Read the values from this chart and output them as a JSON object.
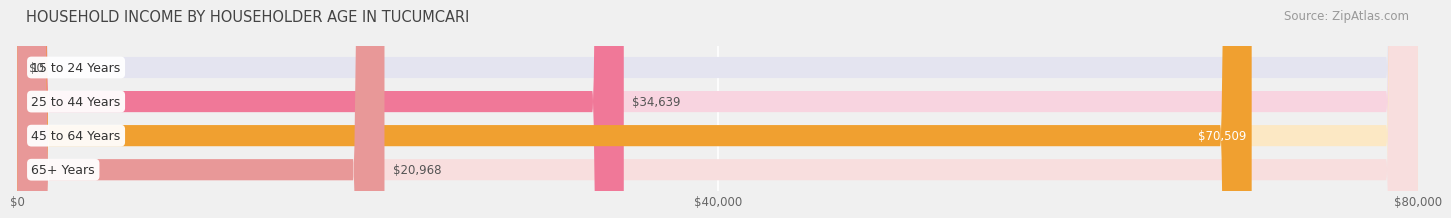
{
  "title": "HOUSEHOLD INCOME BY HOUSEHOLDER AGE IN TUCUMCARI",
  "source": "Source: ZipAtlas.com",
  "categories": [
    "15 to 24 Years",
    "25 to 44 Years",
    "45 to 64 Years",
    "65+ Years"
  ],
  "values": [
    0,
    34639,
    70509,
    20968
  ],
  "value_labels": [
    "$0",
    "$34,639",
    "$70,509",
    "$20,968"
  ],
  "bar_colors": [
    "#aaaad0",
    "#f07898",
    "#f0a030",
    "#e89898"
  ],
  "bar_bg_colors": [
    "#e4e4f0",
    "#f8d4e0",
    "#fce8c4",
    "#f8dede"
  ],
  "xmax": 80000,
  "xticks": [
    0,
    40000,
    80000
  ],
  "xticklabels": [
    "$0",
    "$40,000",
    "$80,000"
  ],
  "background_color": "#f0f0f0",
  "bar_height": 0.62,
  "title_fontsize": 10.5,
  "source_fontsize": 8.5,
  "label_fontsize": 9,
  "value_fontsize": 8.5,
  "tick_fontsize": 8.5,
  "value_label_threshold": 0.78
}
